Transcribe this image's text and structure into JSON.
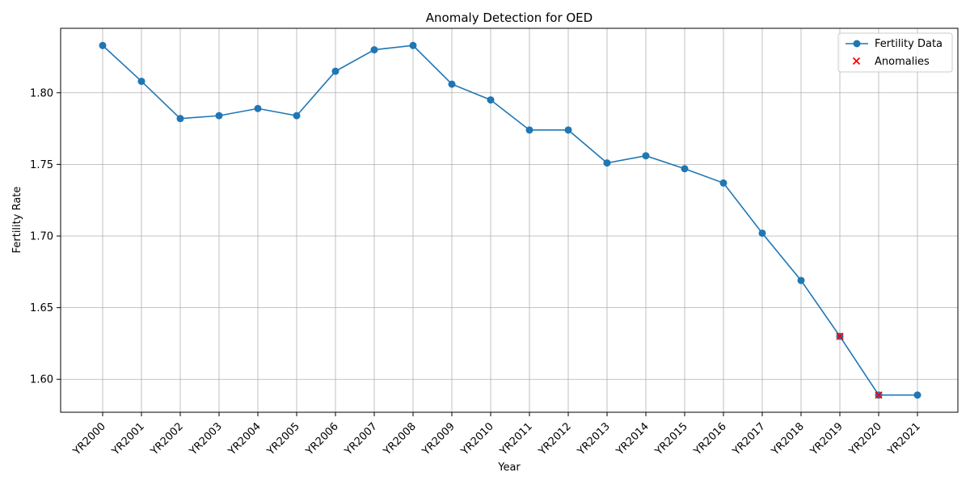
{
  "chart_data": {
    "type": "line",
    "title": "Anomaly Detection for OED",
    "xlabel": "Year",
    "ylabel": "Fertility Rate",
    "categories": [
      "YR2000",
      "YR2001",
      "YR2002",
      "YR2003",
      "YR2004",
      "YR2005",
      "YR2006",
      "YR2007",
      "YR2008",
      "YR2009",
      "YR2010",
      "YR2011",
      "YR2012",
      "YR2013",
      "YR2014",
      "YR2015",
      "YR2016",
      "YR2017",
      "YR2018",
      "YR2019",
      "YR2020",
      "YR2021"
    ],
    "series": [
      {
        "name": "Fertility Data",
        "color": "#1f77b4",
        "marker": "circle",
        "values": [
          1.833,
          1.808,
          1.782,
          1.784,
          1.789,
          1.784,
          1.815,
          1.83,
          1.833,
          1.806,
          1.795,
          1.774,
          1.774,
          1.751,
          1.756,
          1.747,
          1.737,
          1.702,
          1.669,
          1.63,
          1.589,
          1.589
        ]
      }
    ],
    "anomalies": {
      "name": "Anomalies",
      "color": "#ff0000",
      "marker": "x",
      "categories": [
        "YR2019",
        "YR2020"
      ],
      "values": [
        1.63,
        1.589
      ]
    },
    "yticks": [
      1.6,
      1.65,
      1.7,
      1.75,
      1.8
    ],
    "ylim": [
      1.577,
      1.845
    ],
    "grid": true,
    "legend_position": "top-right"
  }
}
